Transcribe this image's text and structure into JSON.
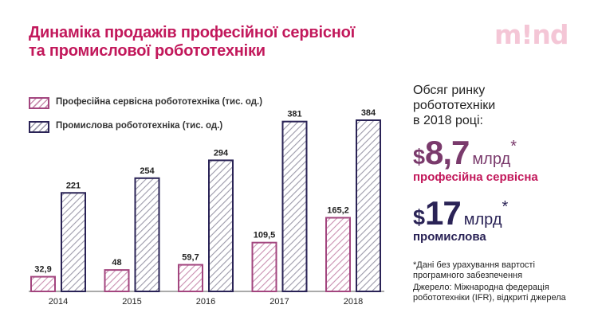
{
  "title": {
    "line1": "Динаміка продажів професійної сервісної",
    "line2": "та промислової робототехніки"
  },
  "logo": "m!nd",
  "colors": {
    "title": "#c2185b",
    "professional_series": "#a3467f",
    "industrial_series": "#2a2356",
    "logo": "#f4c6d6"
  },
  "chart_data": {
    "type": "bar",
    "categories": [
      "2014",
      "2015",
      "2016",
      "2017",
      "2018"
    ],
    "series": [
      {
        "name": "Професійна сервісна робототехніка (тис. од.)",
        "values": [
          32.9,
          48,
          59.7,
          109.5,
          165.2
        ],
        "labels": [
          "32,9",
          "48",
          "59,7",
          "109,5",
          "165,2"
        ],
        "color": "#a3467f",
        "fill": "hatched"
      },
      {
        "name": "Промислова робототехніка (тис. од.)",
        "values": [
          221,
          254,
          294,
          381,
          384
        ],
        "labels": [
          "221",
          "254",
          "294",
          "381",
          "384"
        ],
        "color": "#2a2356",
        "fill": "hatched"
      }
    ],
    "ylim": [
      0,
      384
    ],
    "grid": false,
    "legend": "top-left",
    "y_axis_visible": false
  },
  "sidebar": {
    "heading": [
      "Обсяг ринку",
      "робототехніки",
      "в 2018 році:"
    ],
    "professional": {
      "currency": "$",
      "value": "8,7",
      "unit": "млрд",
      "mark": "*",
      "label": "професійна сервісна"
    },
    "industrial": {
      "currency": "$",
      "value": "17",
      "unit": "млрд",
      "mark": "*",
      "label": "промислова"
    },
    "footnote": [
      "*Дані без урахування вартості",
      "програмного забезпечення"
    ],
    "source": [
      "Джерело: Міжнародна федерація",
      "робототехніки (IFR), відкриті джерела"
    ]
  }
}
